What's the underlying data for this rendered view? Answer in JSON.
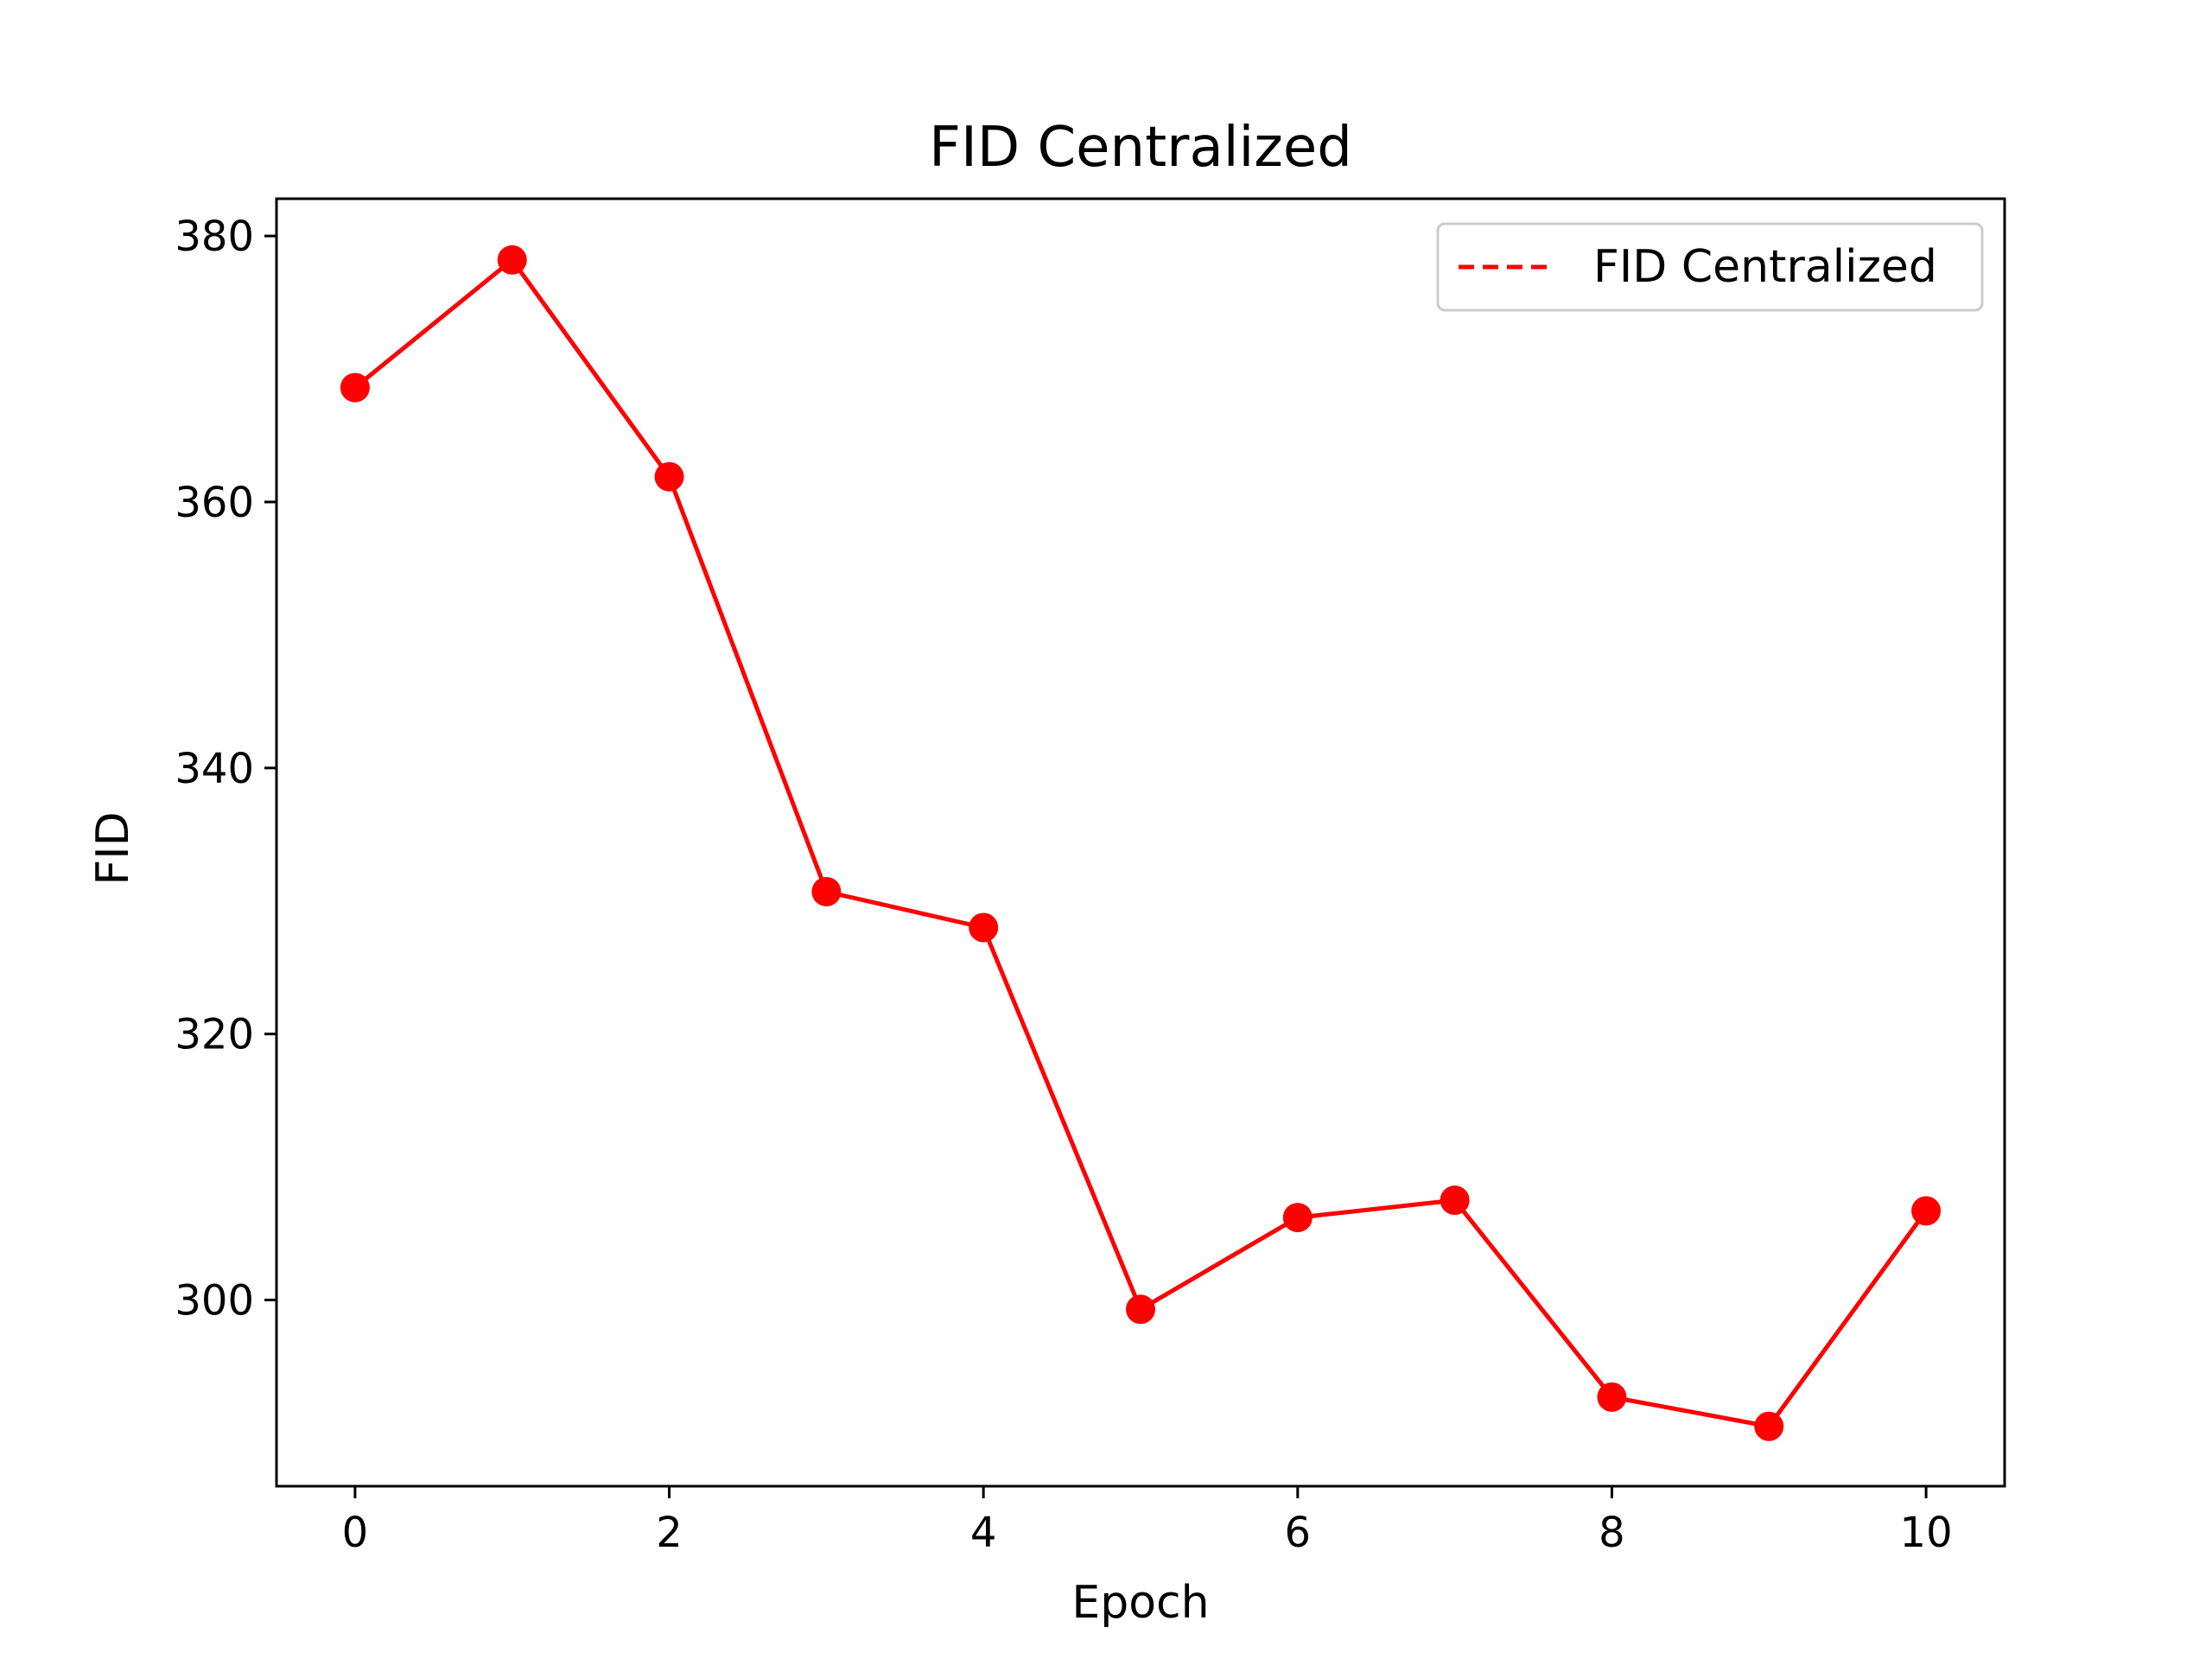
{
  "chart_data": {
    "type": "line",
    "title": "FID Centralized",
    "xlabel": "Epoch",
    "ylabel": "FID",
    "x": [
      0,
      1,
      2,
      3,
      4,
      5,
      6,
      7,
      8,
      9,
      10
    ],
    "series": [
      {
        "name": "FID Centralized",
        "values": [
          368.6,
          378.2,
          361.9,
          330.7,
          328.0,
          299.3,
          306.2,
          307.5,
          292.7,
          290.5,
          306.7
        ],
        "color": "#ff0000"
      }
    ],
    "xlim": [
      -0.5,
      10.5
    ],
    "ylim": [
      286.0,
      382.8
    ],
    "xticks": [
      0,
      2,
      4,
      6,
      8,
      10
    ],
    "yticks": [
      300,
      320,
      340,
      360,
      380
    ],
    "legend": {
      "placement": "top-right",
      "line_style": "dashed"
    },
    "grid": false
  }
}
